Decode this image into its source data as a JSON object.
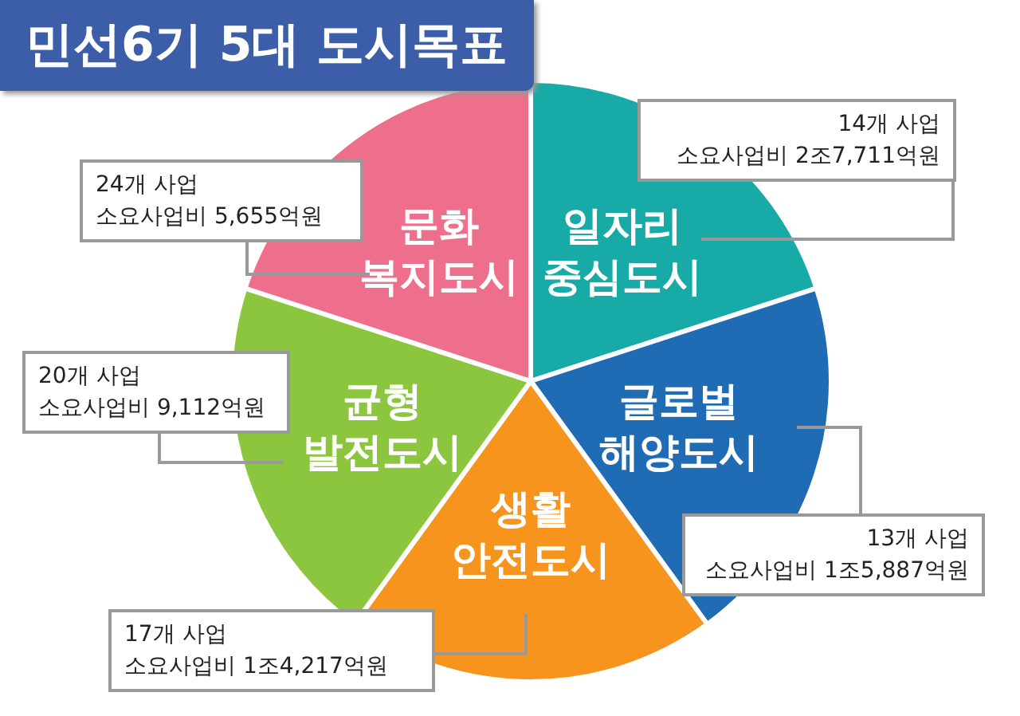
{
  "chart_data": {
    "type": "pie",
    "title": "민선6기 5대 도시목표",
    "categories": [
      "일자리 중심도시",
      "글로벌 해양도시",
      "생활 안전도시",
      "균형 발전도시",
      "문화 복지도시"
    ],
    "values": [
      20,
      20,
      20,
      20,
      20
    ],
    "colors": [
      "#17aaa6",
      "#1f6cb5",
      "#f7941d",
      "#8cc63f",
      "#ee6f8b"
    ],
    "annotations": [
      "14개 사업\n소요사업비 2조7,711억원",
      "13개 사업\n소요사업비 1조5,887억원",
      "17개 사업\n소요사업비 1조4,217억원",
      "20개 사업\n소요사업비 9,112억원",
      "24개 사업\n소요사업비 5,655억원"
    ]
  }
}
